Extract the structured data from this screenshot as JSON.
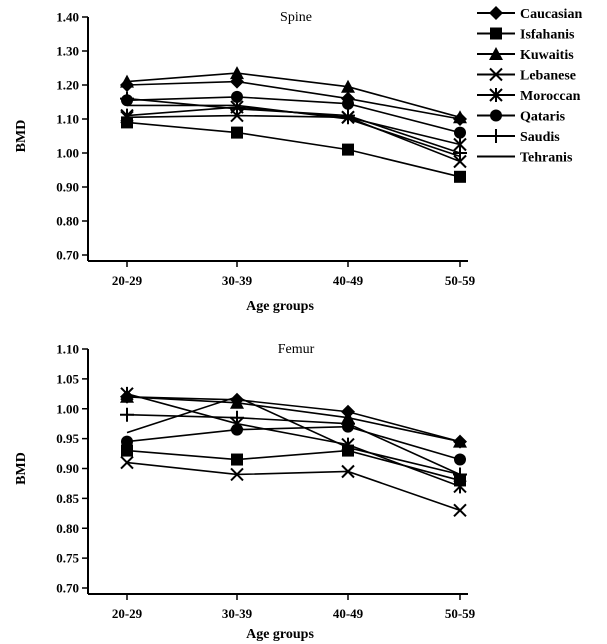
{
  "legend": {
    "entries": [
      {
        "name": "Caucasian",
        "marker": "diamond"
      },
      {
        "name": "Isfahanis",
        "marker": "square"
      },
      {
        "name": "Kuwaitis",
        "marker": "triangle"
      },
      {
        "name": "Lebanese",
        "marker": "x"
      },
      {
        "name": "Moroccan",
        "marker": "asterisk"
      },
      {
        "name": "Qataris",
        "marker": "circle"
      },
      {
        "name": "Saudis",
        "marker": "plus"
      },
      {
        "name": "Tehranis",
        "marker": "none"
      }
    ]
  },
  "chart_data": [
    {
      "type": "line",
      "title": "Spine",
      "xlabel": "Age groups",
      "ylabel": "BMD",
      "ylim": [
        0.7,
        1.4
      ],
      "yticks": [
        "0.70",
        "0.80",
        "0.90",
        "1.00",
        "1.10",
        "1.20",
        "1.30",
        "1.40"
      ],
      "categories": [
        "20-29",
        "30-39",
        "40-49",
        "50-59"
      ],
      "series": [
        {
          "name": "Caucasian",
          "values": [
            1.2,
            1.21,
            1.16,
            1.1
          ]
        },
        {
          "name": "Isfahanis",
          "values": [
            1.09,
            1.06,
            1.01,
            0.93
          ]
        },
        {
          "name": "Kuwaitis",
          "values": [
            1.21,
            1.235,
            1.195,
            1.105
          ]
        },
        {
          "name": "Lebanese",
          "values": [
            1.105,
            1.11,
            1.105,
            0.975
          ]
        },
        {
          "name": "Moroccan",
          "values": [
            1.11,
            1.135,
            1.105,
            1.025
          ]
        },
        {
          "name": "Qataris",
          "values": [
            1.155,
            1.165,
            1.145,
            1.06
          ]
        },
        {
          "name": "Saudis",
          "values": [
            1.16,
            1.13,
            1.11,
            1.0
          ]
        },
        {
          "name": "Tehranis",
          "values": [
            1.14,
            1.14,
            1.1,
            0.99
          ]
        }
      ]
    },
    {
      "type": "line",
      "title": "Femur",
      "xlabel": "Age groups",
      "ylabel": "BMD",
      "ylim": [
        0.7,
        1.1
      ],
      "yticks": [
        "0.70",
        "0.75",
        "0.80",
        "0.85",
        "0.90",
        "0.95",
        "1.00",
        "1.05",
        "1.10"
      ],
      "categories": [
        "20-29",
        "30-39",
        "40-49",
        "50-59"
      ],
      "series": [
        {
          "name": "Caucasian",
          "values": [
            1.02,
            1.015,
            0.995,
            0.945
          ]
        },
        {
          "name": "Isfahanis",
          "values": [
            0.93,
            0.915,
            0.93,
            0.88
          ]
        },
        {
          "name": "Kuwaitis",
          "values": [
            1.02,
            1.01,
            0.985,
            0.945
          ]
        },
        {
          "name": "Lebanese",
          "values": [
            0.91,
            0.89,
            0.895,
            0.83
          ]
        },
        {
          "name": "Moroccan",
          "values": [
            1.025,
            0.975,
            0.94,
            0.87
          ]
        },
        {
          "name": "Qataris",
          "values": [
            0.945,
            0.965,
            0.97,
            0.915
          ]
        },
        {
          "name": "Saudis",
          "values": [
            0.99,
            0.985,
            0.975,
            0.89
          ]
        },
        {
          "name": "Tehranis",
          "values": [
            0.96,
            1.02,
            0.935,
            0.89
          ]
        }
      ]
    }
  ]
}
